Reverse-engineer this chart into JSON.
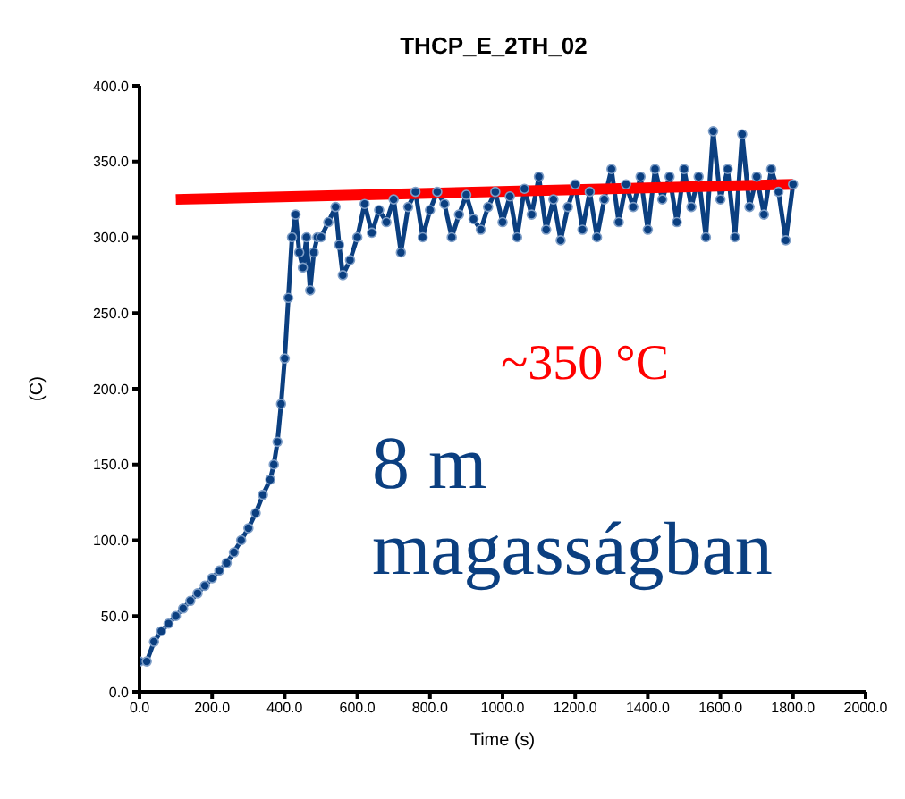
{
  "chart_data": {
    "type": "line",
    "title": "THCP_E_2TH_02",
    "xlabel": "Time (s)",
    "ylabel": "(C)",
    "xlim": [
      0,
      2000
    ],
    "xticks": [
      {
        "value": 0,
        "label": "0.0"
      },
      {
        "value": 200,
        "label": "200.0"
      },
      {
        "value": 400,
        "label": "400.0"
      },
      {
        "value": 600,
        "label": "600.0"
      },
      {
        "value": 800,
        "label": "800.0"
      },
      {
        "value": 1000,
        "label": "1000.0"
      },
      {
        "value": 1200,
        "label": "1200.0"
      },
      {
        "value": 1400,
        "label": "1400.0"
      },
      {
        "value": 1600,
        "label": "1600.0"
      },
      {
        "value": 1800,
        "label": "1800.0"
      },
      {
        "value": 2000,
        "label": "2000.0"
      }
    ],
    "ylim": [
      0,
      400
    ],
    "yticks": [
      {
        "value": 0,
        "label": "0.0"
      },
      {
        "value": 50,
        "label": "50.0"
      },
      {
        "value": 100,
        "label": "100.0"
      },
      {
        "value": 150,
        "label": "150.0"
      },
      {
        "value": 200,
        "label": "200.0"
      },
      {
        "value": 250,
        "label": "250.0"
      },
      {
        "value": 300,
        "label": "300.0"
      },
      {
        "value": 350,
        "label": "350.0"
      },
      {
        "value": 400,
        "label": "400.0"
      }
    ],
    "marker": "circle",
    "series": [
      {
        "color": "#0b3f80",
        "x": [
          0,
          20,
          40,
          60,
          80,
          100,
          120,
          140,
          160,
          180,
          200,
          220,
          240,
          260,
          280,
          300,
          320,
          340,
          360,
          370,
          380,
          390,
          400,
          410,
          420,
          430,
          440,
          450,
          460,
          470,
          480,
          490,
          500,
          520,
          540,
          550,
          560,
          580,
          600,
          620,
          640,
          660,
          680,
          700,
          720,
          740,
          760,
          780,
          800,
          820,
          840,
          860,
          880,
          900,
          920,
          940,
          960,
          980,
          1000,
          1020,
          1040,
          1060,
          1080,
          1100,
          1120,
          1140,
          1160,
          1180,
          1200,
          1220,
          1240,
          1260,
          1280,
          1300,
          1320,
          1340,
          1360,
          1380,
          1400,
          1420,
          1440,
          1460,
          1480,
          1500,
          1520,
          1540,
          1560,
          1580,
          1600,
          1620,
          1640,
          1660,
          1680,
          1700,
          1720,
          1740,
          1760,
          1780,
          1800
        ],
        "values": [
          20,
          20,
          33,
          40,
          45,
          50,
          55,
          60,
          65,
          70,
          75,
          80,
          85,
          92,
          100,
          108,
          118,
          130,
          140,
          150,
          165,
          190,
          220,
          260,
          300,
          315,
          290,
          280,
          300,
          265,
          290,
          300,
          300,
          310,
          320,
          295,
          275,
          285,
          300,
          322,
          303,
          318,
          310,
          325,
          290,
          320,
          330,
          300,
          318,
          330,
          322,
          300,
          315,
          328,
          312,
          305,
          320,
          330,
          310,
          327,
          300,
          332,
          315,
          340,
          305,
          325,
          298,
          320,
          335,
          305,
          330,
          300,
          325,
          345,
          310,
          335,
          320,
          340,
          305,
          345,
          325,
          340,
          310,
          345,
          320,
          340,
          300,
          370,
          325,
          345,
          300,
          368,
          320,
          340,
          315,
          345,
          330,
          298,
          335
        ]
      },
      {
        "type": "line",
        "color": "#ff0000",
        "marker": "none",
        "x": [
          100,
          1800
        ],
        "values": [
          325,
          335
        ]
      }
    ],
    "annotations": [
      "~350 °C",
      "8 m magasságban"
    ]
  }
}
